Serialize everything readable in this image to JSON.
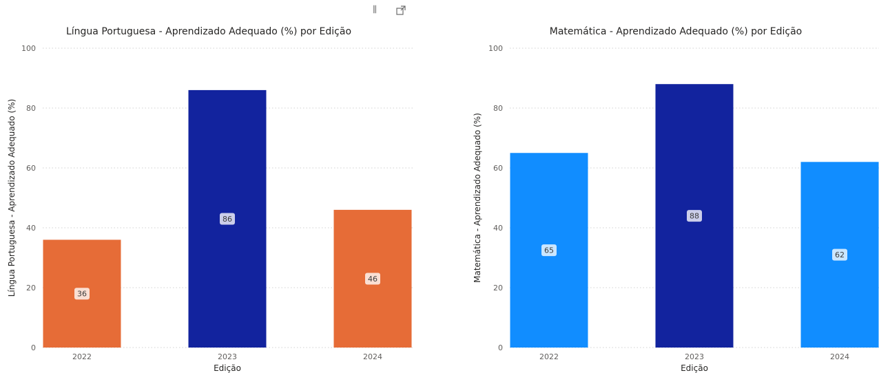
{
  "header_icons": {
    "filter": "filter-icon",
    "focus": "focus-mode-icon"
  },
  "chart_data": [
    {
      "type": "bar",
      "title": "Língua Portuguesa - Aprendizado Adequado (%) por Edição",
      "xlabel": "Edição",
      "ylabel": "Língua Portuguesa - Aprendizado Adequado (%)",
      "categories": [
        "2022",
        "2023",
        "2024"
      ],
      "values": [
        36,
        86,
        46
      ],
      "data_labels": [
        "36",
        "86",
        "46"
      ],
      "colors": [
        "#e66c37",
        "#12239e",
        "#e66c37"
      ],
      "ylim": [
        0,
        100
      ],
      "yticks": [
        "0",
        "20",
        "40",
        "60",
        "80",
        "100"
      ],
      "grid": true
    },
    {
      "type": "bar",
      "title": "Matemática - Aprendizado Adequado (%) por Edição",
      "xlabel": "Edição",
      "ylabel": "Matemática - Aprendizado Adequado (%)",
      "categories": [
        "2022",
        "2023",
        "2024"
      ],
      "values": [
        65,
        88,
        62
      ],
      "data_labels": [
        "65",
        "88",
        "62"
      ],
      "colors": [
        "#118dff",
        "#12239e",
        "#118dff"
      ],
      "ylim": [
        0,
        100
      ],
      "yticks": [
        "0",
        "20",
        "40",
        "60",
        "80",
        "100"
      ],
      "grid": true
    }
  ]
}
